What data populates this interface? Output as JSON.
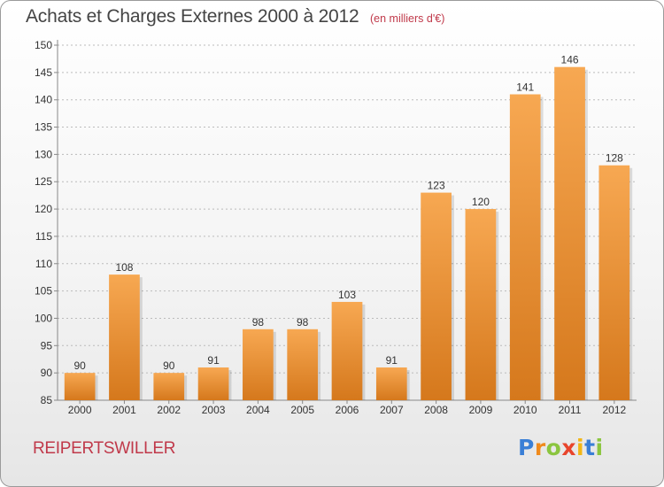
{
  "chart": {
    "title": "Achats et Charges Externes 2000 à 2012",
    "unit": "(en milliers d'€)",
    "commune": "REIPERTSWILLER",
    "logo": "Proxiti"
  },
  "colors": {
    "bar_top": "#f7a852",
    "bar_bottom": "#d5781c",
    "title": "#444444",
    "accent": "#c0394a",
    "grid": "#bbbbbb"
  },
  "logo_letters": [
    {
      "ch": "P",
      "color": "#3a7fd6"
    },
    {
      "ch": "r",
      "color": "#f08a1c"
    },
    {
      "ch": "o",
      "color": "#8bc53f"
    },
    {
      "ch": "x",
      "color": "#e8452c"
    },
    {
      "ch": "i",
      "color": "#f2b616"
    },
    {
      "ch": "t",
      "color": "#3a7fd6"
    },
    {
      "ch": "i",
      "color": "#8bc53f"
    }
  ],
  "chart_data": {
    "type": "bar",
    "title": "Achats et Charges Externes 2000 à 2012",
    "subtitle": "(en milliers d'€)",
    "xlabel": "",
    "ylabel": "",
    "categories": [
      "2000",
      "2001",
      "2002",
      "2003",
      "2004",
      "2005",
      "2006",
      "2007",
      "2008",
      "2009",
      "2010",
      "2011",
      "2012"
    ],
    "values": [
      90,
      108,
      90,
      91,
      98,
      98,
      103,
      91,
      123,
      120,
      141,
      146,
      128
    ],
    "ylim": [
      85,
      150
    ],
    "yticks": [
      85,
      90,
      95,
      100,
      105,
      110,
      115,
      120,
      125,
      130,
      135,
      140,
      145,
      150
    ],
    "grid": true,
    "legend": "none"
  }
}
